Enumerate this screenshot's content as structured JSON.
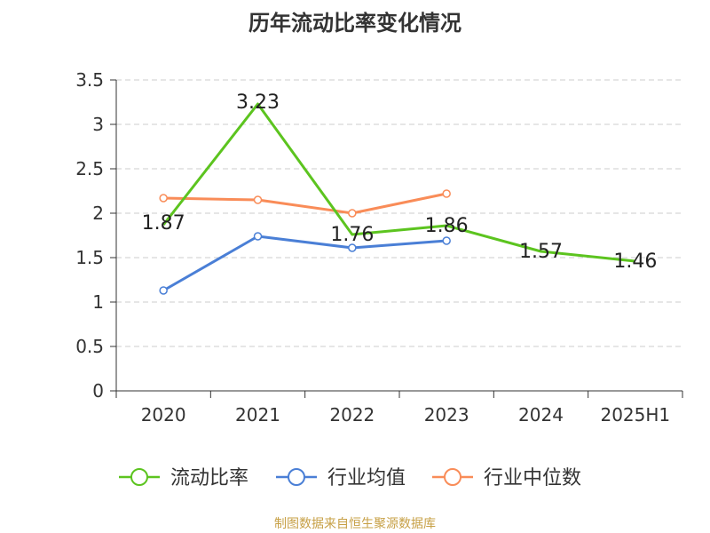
{
  "chart_data": {
    "type": "line",
    "title": "历年流动比率变化情况",
    "categories": [
      "2020",
      "2021",
      "2022",
      "2023",
      "2024",
      "2025H1"
    ],
    "ylim": [
      0,
      3.5
    ],
    "yticks": [
      "0",
      "0.5",
      "1",
      "1.5",
      "2",
      "2.5",
      "3",
      "3.5"
    ],
    "ytick_values": [
      0,
      0.5,
      1,
      1.5,
      2,
      2.5,
      3,
      3.5
    ],
    "grid": true,
    "legend_position": "bottom",
    "series": [
      {
        "name": "流动比率",
        "color": "#5cc41f",
        "values": [
          1.87,
          3.23,
          1.76,
          1.86,
          1.57,
          1.46
        ],
        "labels": [
          "1.87",
          "3.23",
          "1.76",
          "1.86",
          "1.57",
          "1.46"
        ],
        "marker": "none"
      },
      {
        "name": "行业均值",
        "color": "#4a7fd6",
        "values": [
          1.13,
          1.74,
          1.61,
          1.69,
          null,
          null
        ],
        "marker": "circle"
      },
      {
        "name": "行业中位数",
        "color": "#f98c58",
        "values": [
          2.17,
          2.15,
          2.0,
          2.22,
          null,
          null
        ],
        "marker": "circle"
      }
    ]
  },
  "source": "制图数据来自恒生聚源数据库"
}
